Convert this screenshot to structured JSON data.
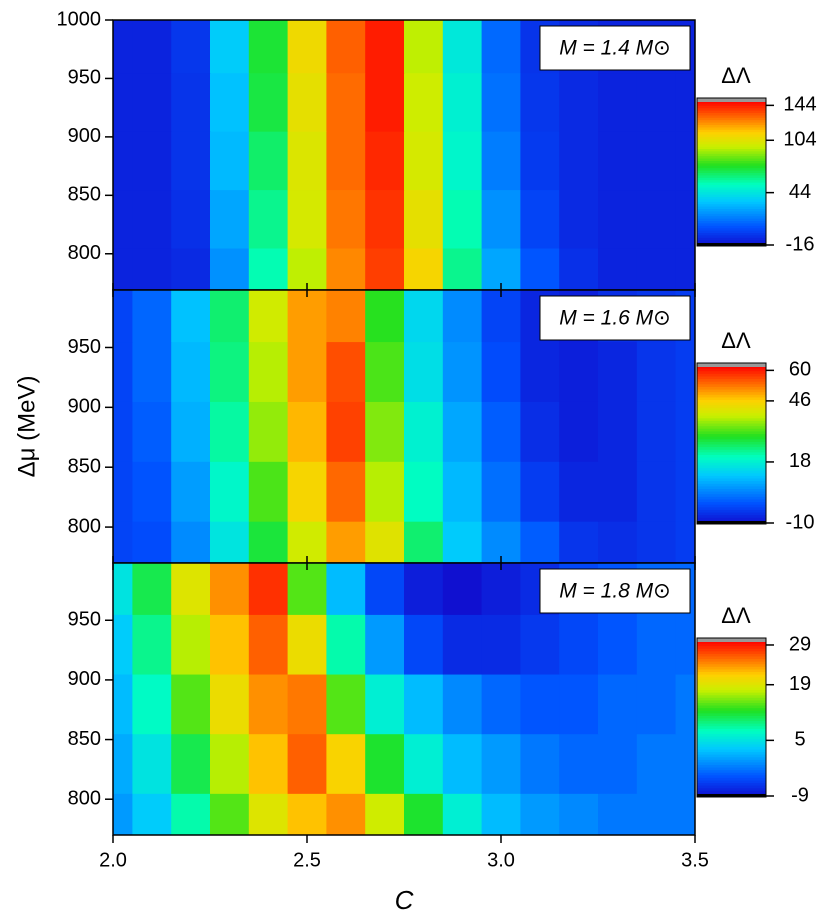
{
  "chart_data": [
    {
      "type": "heatmap",
      "label": "M = 1.4 M⊙",
      "x": [
        2.0,
        2.1,
        2.2,
        2.3,
        2.4,
        2.5,
        2.6,
        2.7,
        2.8,
        2.9,
        3.0,
        3.1,
        3.2,
        3.3,
        3.4,
        3.5
      ],
      "y": [
        780,
        830,
        880,
        930,
        980
      ],
      "z": [
        [
          -10,
          -10,
          -8,
          20,
          55,
          95,
          125,
          138,
          110,
          60,
          25,
          5,
          -6,
          -10,
          -10,
          -10
        ],
        [
          -10,
          -10,
          -6,
          25,
          60,
          100,
          128,
          140,
          105,
          55,
          20,
          0,
          -8,
          -10,
          -10,
          -10
        ],
        [
          -10,
          -10,
          -5,
          30,
          65,
          102,
          130,
          142,
          100,
          50,
          15,
          -3,
          -8,
          -10,
          -10,
          -10
        ],
        [
          -10,
          -10,
          -5,
          32,
          70,
          105,
          130,
          144,
          98,
          48,
          12,
          -4,
          -8,
          -10,
          -10,
          -10
        ],
        [
          -10,
          -10,
          -4,
          35,
          72,
          108,
          132,
          144,
          95,
          45,
          10,
          -5,
          -8,
          -10,
          -10,
          -10
        ]
      ],
      "xlim": [
        2.0,
        3.5
      ],
      "ylim": [
        769,
        1000
      ],
      "yticks": [
        800,
        850,
        900,
        950,
        1000
      ],
      "colorbar": {
        "title": "ΔΛ",
        "clim": [
          -16,
          149
        ],
        "ticks": [
          144,
          104,
          44,
          -16
        ]
      }
    },
    {
      "type": "heatmap",
      "label": "M = 1.6 M⊙",
      "ylabel": "Δμ (MeV)",
      "x": [
        2.0,
        2.1,
        2.2,
        2.3,
        2.4,
        2.5,
        2.6,
        2.7,
        2.8,
        2.9,
        3.0,
        3.1,
        3.2,
        3.3,
        3.4,
        3.5
      ],
      "y": [
        780,
        830,
        880,
        930,
        980
      ],
      "z": [
        [
          -3,
          -2,
          5,
          16,
          28,
          40,
          50,
          42,
          25,
          12,
          5,
          0,
          -5,
          -6,
          -5,
          -4
        ],
        [
          -3,
          -1,
          7,
          19,
          32,
          45,
          54,
          38,
          20,
          10,
          2,
          -4,
          -7,
          -7,
          -5,
          -4
        ],
        [
          -3,
          0,
          9,
          22,
          36,
          48,
          57,
          35,
          18,
          8,
          0,
          -6,
          -8,
          -7,
          -5,
          -4
        ],
        [
          -3,
          1,
          10,
          24,
          38,
          50,
          56,
          32,
          15,
          6,
          -2,
          -7,
          -8,
          -7,
          -5,
          -4
        ],
        [
          -3,
          1,
          11,
          25,
          40,
          50,
          52,
          30,
          14,
          5,
          -3,
          -7,
          -8,
          -6,
          -5,
          -4
        ]
      ],
      "xlim": [
        2.0,
        3.5
      ],
      "ylim": [
        770,
        998
      ],
      "yticks": [
        800,
        850,
        900,
        950
      ],
      "colorbar": {
        "title": "ΔΛ",
        "clim": [
          -10,
          62
        ],
        "ticks": [
          60,
          46,
          18,
          -10
        ]
      }
    },
    {
      "type": "heatmap",
      "label": "M = 1.8 M⊙",
      "xlabel": "C",
      "x": [
        2.0,
        2.1,
        2.2,
        2.3,
        2.4,
        2.5,
        2.6,
        2.7,
        2.8,
        2.9,
        3.0,
        3.1,
        3.2,
        3.3,
        3.4,
        3.5
      ],
      "y": [
        780,
        830,
        880,
        930,
        980
      ],
      "z": [
        [
          0,
          3,
          8,
          14,
          19,
          22,
          24,
          18,
          12,
          6,
          2,
          0,
          -1,
          -2,
          -2,
          -2
        ],
        [
          1,
          5,
          11,
          17,
          22,
          26,
          21,
          12,
          6,
          2,
          0,
          -2,
          -3,
          -3,
          -2,
          -2
        ],
        [
          2,
          7,
          14,
          20,
          24,
          25,
          14,
          6,
          2,
          -1,
          -3,
          -4,
          -4,
          -3,
          -3,
          -2
        ],
        [
          3,
          9,
          17,
          22,
          26,
          20,
          8,
          0,
          -5,
          -7,
          -7,
          -6,
          -5,
          -4,
          -3,
          -3
        ],
        [
          5,
          11,
          19,
          24,
          28,
          14,
          2,
          -5,
          -8,
          -9,
          -8,
          -7,
          -5,
          -4,
          -3,
          -3
        ]
      ],
      "xlim": [
        2.0,
        3.5
      ],
      "ylim": [
        770,
        998
      ],
      "yticks": [
        800,
        850,
        900,
        950
      ],
      "xticks": [
        {
          "value": 2.0,
          "label": "2.0"
        },
        {
          "value": 2.5,
          "label": "2.5"
        },
        {
          "value": 3.0,
          "label": "3.0"
        },
        {
          "value": 3.5,
          "label": "3.5"
        }
      ],
      "colorbar": {
        "title": "ΔΛ",
        "clim": [
          -9,
          30
        ],
        "ticks": [
          29,
          19,
          5,
          -9
        ]
      }
    }
  ]
}
